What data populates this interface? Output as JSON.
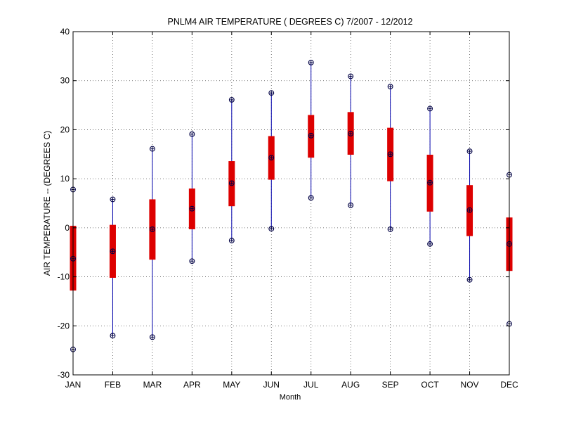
{
  "chart_data": {
    "type": "box",
    "title": "PNLM4  AIR TEMPERATURE ( DEGREES C) 7/2007 - 12/2012",
    "xlabel": "Month",
    "ylabel": "AIR TEMPERATURE -- (DEGREES C)",
    "ylim": [
      -30,
      40
    ],
    "yticks": [
      -30,
      -20,
      -10,
      0,
      10,
      20,
      30,
      40
    ],
    "grid": true,
    "categories": [
      "JAN",
      "FEB",
      "MAR",
      "APR",
      "MAY",
      "JUN",
      "JUL",
      "AUG",
      "SEP",
      "OCT",
      "NOV",
      "DEC"
    ],
    "min": [
      -24.8,
      -22.0,
      -22.3,
      -6.8,
      -2.6,
      -0.2,
      6.1,
      4.6,
      -0.3,
      -3.3,
      -10.6,
      -19.6
    ],
    "q1": [
      -12.8,
      -10.2,
      -6.5,
      -0.3,
      4.4,
      9.8,
      14.3,
      14.9,
      9.5,
      3.3,
      -1.7,
      -8.8
    ],
    "median": [
      -6.3,
      -4.8,
      -0.3,
      3.9,
      9.1,
      14.3,
      18.8,
      19.2,
      15.0,
      9.2,
      3.6,
      -3.3
    ],
    "q3": [
      0.4,
      0.6,
      5.8,
      8.0,
      13.6,
      18.7,
      23.0,
      23.6,
      20.4,
      14.9,
      8.7,
      2.1
    ],
    "max": [
      7.8,
      5.8,
      16.1,
      19.1,
      26.1,
      27.5,
      33.7,
      30.9,
      28.8,
      24.3,
      15.6,
      10.8
    ],
    "colors": {
      "whisker": "#0000aa",
      "box": "#dd0000",
      "marker": "#000044",
      "grid": "#555555"
    }
  }
}
